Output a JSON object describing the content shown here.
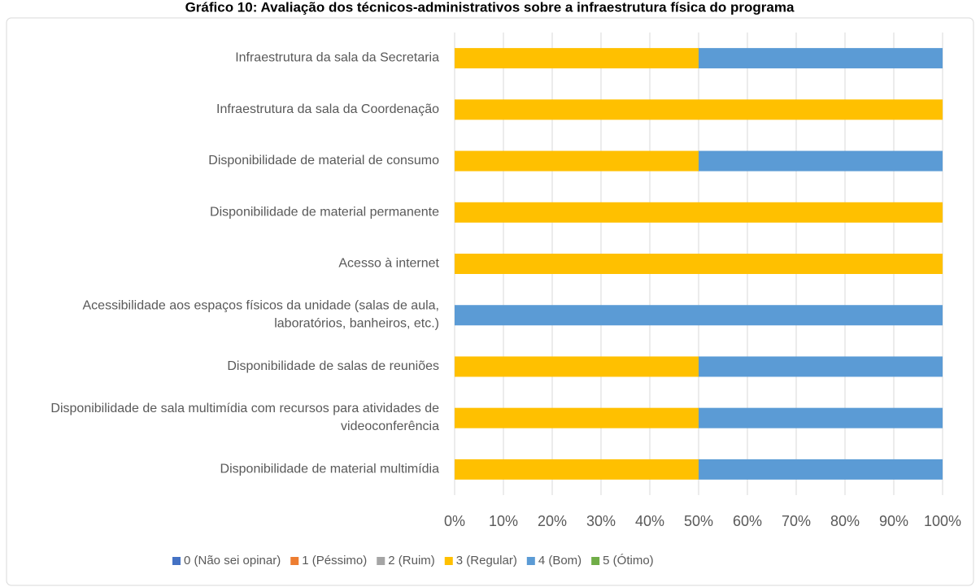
{
  "chart_data": {
    "type": "stacked_barh",
    "title": "Gráfico 10: Avaliação dos técnicos-administrativos sobre a infraestrutura física do programa",
    "categories": [
      "Infraestrutura da sala da Secretaria",
      "Infraestrutura da sala da Coordenação",
      "Disponibilidade de material de consumo",
      "Disponibilidade de material permanente",
      "Acesso à internet",
      "Acessibilidade aos espaços físicos da unidade (salas de aula, laboratórios, banheiros, etc.)",
      "Disponibilidade de salas de reuniões",
      "Disponibilidade de sala multimídia com recursos para atividades de videoconferência",
      "Disponibilidade de material multimídia"
    ],
    "series": [
      {
        "name": "0 (Não sei opinar)",
        "color": "#4472c4",
        "values": [
          0,
          0,
          0,
          0,
          0,
          0,
          0,
          0,
          0
        ]
      },
      {
        "name": "1 (Péssimo)",
        "color": "#ed7d31",
        "values": [
          0,
          0,
          0,
          0,
          0,
          0,
          0,
          0,
          0
        ]
      },
      {
        "name": "2 (Ruim)",
        "color": "#a5a5a5",
        "values": [
          0,
          0,
          0,
          0,
          0,
          0,
          0,
          0,
          0
        ]
      },
      {
        "name": "3 (Regular)",
        "color": "#ffc000",
        "values": [
          50,
          100,
          50,
          100,
          100,
          0,
          50,
          50,
          50
        ]
      },
      {
        "name": "4 (Bom)",
        "color": "#5b9bd5",
        "values": [
          50,
          0,
          50,
          0,
          0,
          100,
          50,
          50,
          50
        ]
      },
      {
        "name": "5 (Ótimo)",
        "color": "#70ad47",
        "values": [
          0,
          0,
          0,
          0,
          0,
          0,
          0,
          0,
          0
        ]
      }
    ],
    "xlim": [
      0,
      100
    ],
    "xticks": [
      {
        "value": 0,
        "label": "0%"
      },
      {
        "value": 10,
        "label": "10%"
      },
      {
        "value": 20,
        "label": "20%"
      },
      {
        "value": 30,
        "label": "30%"
      },
      {
        "value": 40,
        "label": "40%"
      },
      {
        "value": 50,
        "label": "50%"
      },
      {
        "value": 60,
        "label": "60%"
      },
      {
        "value": 70,
        "label": "70%"
      },
      {
        "value": 80,
        "label": "80%"
      },
      {
        "value": 90,
        "label": "90%"
      },
      {
        "value": 100,
        "label": "100%"
      }
    ],
    "grid": true,
    "legend": "bottom"
  }
}
